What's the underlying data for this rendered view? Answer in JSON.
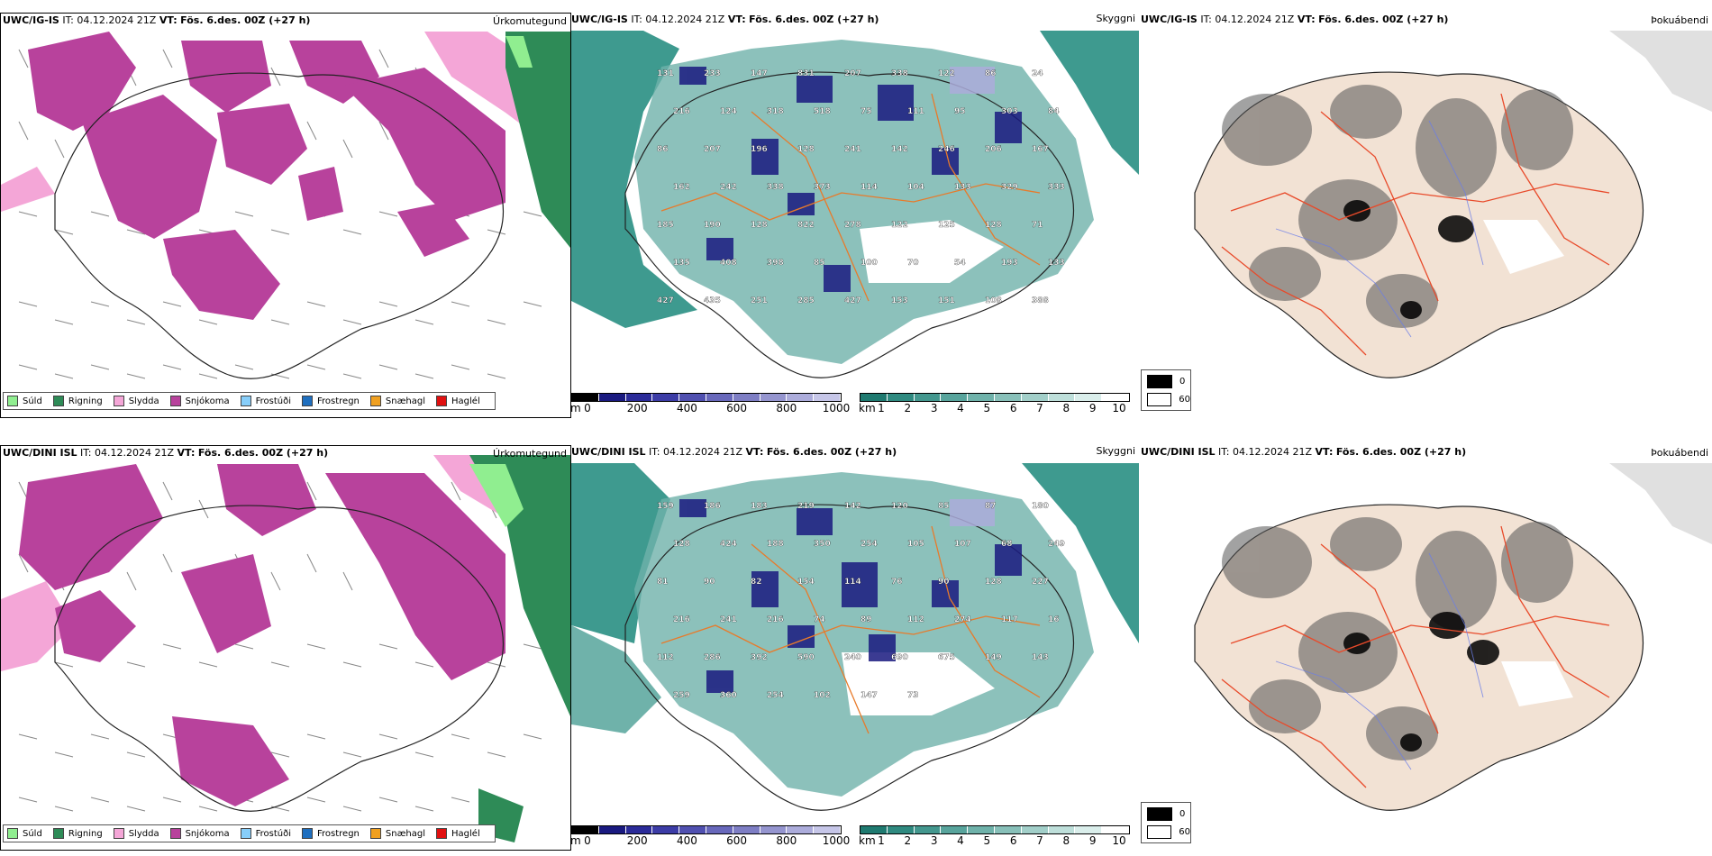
{
  "rows": [
    {
      "model": "UWC/IG-IS",
      "it_label": "IT:",
      "it_value": "04.12.2024 21Z",
      "vt_label": "VT:",
      "vt_value": "Fös. 6.des. 00Z (+27 h)",
      "precip_title": "Úrkomutegund",
      "vis_title": "Skyggni",
      "fog_title": "Þokuábendi"
    },
    {
      "model": "UWC/DINI ISL",
      "it_label": "IT:",
      "it_value": "04.12.2024 21Z",
      "vt_label": "VT:",
      "vt_value": "Fös. 6.des. 00Z (+27 h)",
      "precip_title": "Úrkomutegund",
      "vis_title": "Skyggni",
      "fog_title": "Þokuábendi"
    }
  ],
  "precip_legend": [
    {
      "label": "Súld",
      "color": "#90ee90"
    },
    {
      "label": "Rigning",
      "color": "#2e8b57"
    },
    {
      "label": "Slydda",
      "color": "#f4a6d7"
    },
    {
      "label": "Snjókoma",
      "color": "#b8429c"
    },
    {
      "label": "Frostúði",
      "color": "#87cefa"
    },
    {
      "label": "Frostregn",
      "color": "#1f6fbf"
    },
    {
      "label": "Snæhagl",
      "color": "#f0a020"
    },
    {
      "label": "Haglél",
      "color": "#e01010"
    }
  ],
  "cloud_base_scale": {
    "unit": "m",
    "ticks": [
      "0",
      "200",
      "400",
      "600",
      "800",
      "1000"
    ],
    "colors": [
      "#000000",
      "#1a1a80",
      "#2b2b99",
      "#3c3ca6",
      "#5050b0",
      "#6868bb",
      "#7e7ec4",
      "#9595cf",
      "#acacdb",
      "#c6c6e8"
    ]
  },
  "visibility_scale": {
    "unit": "km",
    "ticks": [
      "1",
      "2",
      "3",
      "4",
      "5",
      "6",
      "7",
      "8",
      "9",
      "10"
    ],
    "colors": [
      "#1f7a70",
      "#2f8a80",
      "#43978e",
      "#58a49c",
      "#6fb2aa",
      "#88c0b9",
      "#a2cfc9",
      "#bedfda",
      "#daeeeb",
      "#ffffff"
    ]
  },
  "fog_scale": {
    "items": [
      {
        "label": "0",
        "color": "#000000"
      },
      {
        "label": "60",
        "color": "#ffffff"
      }
    ]
  },
  "cloud_base_labels_top": [
    "131",
    "233",
    "147",
    "831",
    "207",
    "338",
    "122",
    "86",
    "24",
    "216",
    "124",
    "318",
    "518",
    "75",
    "111",
    "95",
    "303",
    "84",
    "86",
    "207",
    "196",
    "128",
    "241",
    "142",
    "246",
    "206",
    "167",
    "162",
    "242",
    "338",
    "373",
    "114",
    "104",
    "133",
    "329",
    "333",
    "185",
    "190",
    "128",
    "822",
    "278",
    "122",
    "125",
    "128",
    "71",
    "135",
    "408",
    "398",
    "85",
    "100",
    "70",
    "54",
    "193",
    "133",
    "427",
    "435",
    "251",
    "285",
    "427",
    "153",
    "151",
    "108",
    "388"
  ],
  "cloud_base_labels_bottom": [
    "159",
    "186",
    "183",
    "219",
    "142",
    "120",
    "85",
    "87",
    "180",
    "128",
    "424",
    "188",
    "350",
    "254",
    "105",
    "107",
    "68",
    "249",
    "81",
    "90",
    "82",
    "154",
    "114",
    "76",
    "90",
    "128",
    "227",
    "216",
    "241",
    "216",
    "74",
    "89",
    "112",
    "274",
    "117",
    "16",
    "112",
    "286",
    "392",
    "590",
    "240",
    "690",
    "675",
    "149",
    "143",
    "259",
    "360",
    "254",
    "102",
    "147",
    "73"
  ]
}
